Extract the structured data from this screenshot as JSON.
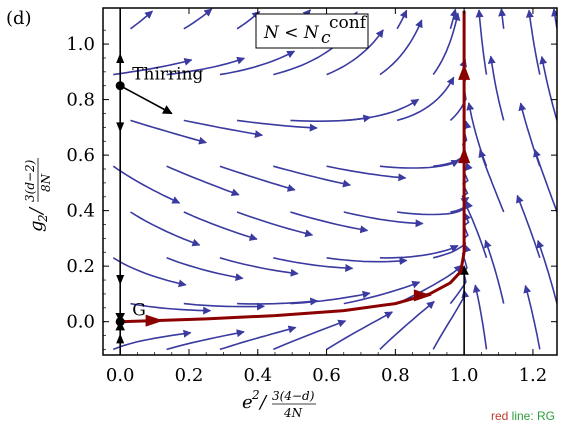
{
  "panel_label": "(d)",
  "legend_box": "N < N_c^conf",
  "footnote": {
    "red": "red",
    "rest": " line: RG"
  },
  "colors": {
    "stream": "#3a3aa0",
    "rg_line": "#8b0000",
    "axes": "#000000"
  },
  "chart_data": {
    "type": "streamplot",
    "title": "",
    "xlabel": "e^2 / (3(4-d)/(4N))",
    "ylabel": "g_2 / (3(d-2)/(8N))",
    "xlim": [
      -0.05,
      1.27
    ],
    "ylim": [
      -0.12,
      1.13
    ],
    "xticks": [
      "0.0",
      "0.2",
      "0.4",
      "0.6",
      "0.8",
      "1.0",
      "1.2"
    ],
    "yticks": [
      "0.0",
      "0.2",
      "0.4",
      "0.6",
      "0.8",
      "1.0"
    ],
    "fixed_points": [
      {
        "label": "Thirring",
        "x": 0.0,
        "y": 0.85
      },
      {
        "label": "G",
        "x": 0.0,
        "y": 0.0
      }
    ],
    "rg_line": {
      "x": [
        0.0,
        0.1,
        0.25,
        0.45,
        0.65,
        0.8,
        0.9,
        0.96,
        0.99,
        1.0,
        1.0,
        1.0,
        1.0
      ],
      "y": [
        0.0,
        0.004,
        0.01,
        0.022,
        0.04,
        0.065,
        0.1,
        0.14,
        0.18,
        0.25,
        0.55,
        0.85,
        1.12
      ]
    },
    "rg_arrows": [
      {
        "x": 0.1,
        "y": 0.004
      },
      {
        "x": 0.88,
        "y": 0.095
      },
      {
        "x": 1.0,
        "y": 0.6
      },
      {
        "x": 1.0,
        "y": 0.9
      }
    ],
    "black_flows": [
      {
        "from": [
          0.0,
          0.85
        ],
        "to": [
          0.0,
          1.13
        ]
      },
      {
        "from": [
          0.0,
          0.85
        ],
        "to": [
          0.0,
          0.0
        ]
      },
      {
        "from": [
          0.0,
          -0.12
        ],
        "to": [
          0.0,
          0.0
        ]
      },
      {
        "from": [
          0.0,
          0.85
        ],
        "to": [
          0.15,
          0.75
        ]
      },
      {
        "from": [
          1.0,
          -0.12
        ],
        "to": [
          1.0,
          0.2
        ]
      }
    ]
  }
}
